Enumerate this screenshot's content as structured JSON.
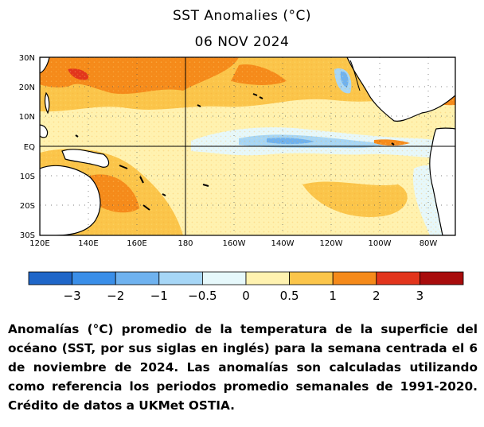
{
  "title": "SST Anomalies (°C)",
  "date": "06 NOV 2024",
  "map": {
    "lat_labels": [
      "30N",
      "20N",
      "10N",
      "EQ",
      "10S",
      "20S",
      "30S"
    ],
    "lon_labels": [
      "120E",
      "140E",
      "160E",
      "180",
      "160W",
      "140W",
      "120W",
      "100W",
      "80W"
    ],
    "colors": {
      "land": "#ffffff",
      "coast": "#000000",
      "neutral": "#ffffcc"
    }
  },
  "colorbar": {
    "colors": [
      "#1f66c8",
      "#3a8ee8",
      "#6fb2ef",
      "#a6d6f6",
      "#e6f8fb",
      "#fff2b0",
      "#fbc54a",
      "#f58a1a",
      "#e2351c",
      "#a80c0c"
    ],
    "labels": [
      "−3",
      "−2",
      "−1",
      "−0.5",
      "0",
      "0.5",
      "1",
      "2",
      "3"
    ]
  },
  "caption": "Anomalías (°C) promedio de la temperatura de la superficie del océano (SST, por sus siglas en inglés) para la semana centrada el 6 de noviembre de 2024. Las anomalías son calculadas utilizando como referencia los periodos promedio semanales de 1991-2020. Crédito de datos a UKMet OSTIA."
}
